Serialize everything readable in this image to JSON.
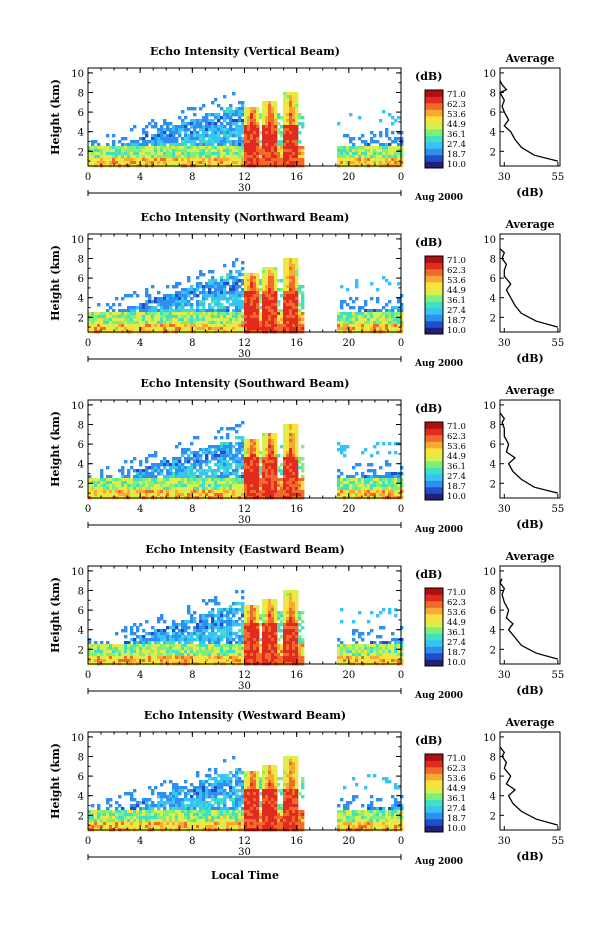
{
  "figure": {
    "x_label": "Local Time",
    "date_label": "Aug 2000",
    "day_label": "30",
    "cbar_unit": "(dB)",
    "cbar_ticks": [
      "71.0",
      "62.3",
      "53.6",
      "44.9",
      "36.1",
      "27.4",
      "18.7",
      "10.0"
    ],
    "cbar_colors": [
      "#20207a",
      "#1f4fc8",
      "#2f8ff0",
      "#35c4f5",
      "#40e0c0",
      "#7ef07a",
      "#d7f050",
      "#fbe23a",
      "#f8a934",
      "#f06a2c",
      "#e02b1e",
      "#b00f0f"
    ],
    "avg_title": "Average",
    "avg_xlabel": "(dB)"
  },
  "chart_data": [
    {
      "type": "heatmap",
      "title": "Echo Intensity (Vertical Beam)",
      "ylabel": "Height (km)",
      "xlabel": "Local Time",
      "x_ticks": [
        "0",
        "4",
        "8",
        "12",
        "16",
        "20",
        "0"
      ],
      "y_ticks": [
        "2",
        "4",
        "6",
        "8",
        "10"
      ],
      "xlim": [
        0,
        24
      ],
      "ylim": [
        0.5,
        10.5
      ],
      "colorbar": {
        "unit": "(dB)",
        "range": [
          10.0,
          71.0
        ]
      },
      "average_profile": {
        "x_ticks": [
          "30",
          "55"
        ],
        "xlim": [
          28,
          56
        ],
        "points": [
          [
            55,
            1.0
          ],
          [
            44,
            1.6
          ],
          [
            38,
            2.4
          ],
          [
            35,
            3.2
          ],
          [
            33,
            4.0
          ],
          [
            30,
            4.6
          ],
          [
            32,
            5.2
          ],
          [
            30,
            6.0
          ],
          [
            29,
            6.6
          ],
          [
            30,
            7.2
          ],
          [
            28,
            8.0
          ],
          [
            31,
            8.3
          ],
          [
            29,
            8.8
          ],
          [
            28,
            9.2
          ]
        ]
      }
    },
    {
      "type": "heatmap",
      "title": "Echo Intensity (Northward Beam)",
      "ylabel": "Height (km)",
      "xlabel": "Local Time",
      "x_ticks": [
        "0",
        "4",
        "8",
        "12",
        "16",
        "20",
        "0"
      ],
      "y_ticks": [
        "2",
        "4",
        "6",
        "8",
        "10"
      ],
      "xlim": [
        0,
        24
      ],
      "ylim": [
        0.5,
        10.5
      ],
      "colorbar": {
        "unit": "(dB)",
        "range": [
          10.0,
          71.0
        ]
      },
      "average_profile": {
        "x_ticks": [
          "30",
          "55"
        ],
        "xlim": [
          28,
          56
        ],
        "points": [
          [
            55,
            1.0
          ],
          [
            45,
            1.6
          ],
          [
            38,
            2.4
          ],
          [
            35,
            3.2
          ],
          [
            33,
            4.0
          ],
          [
            31,
            4.8
          ],
          [
            33,
            5.4
          ],
          [
            30,
            6.2
          ],
          [
            30,
            6.8
          ],
          [
            31,
            7.4
          ],
          [
            29,
            8.0
          ],
          [
            30,
            8.6
          ],
          [
            28,
            9.0
          ]
        ]
      }
    },
    {
      "type": "heatmap",
      "title": "Echo Intensity (Southward Beam)",
      "ylabel": "Height (km)",
      "xlabel": "Local Time",
      "x_ticks": [
        "0",
        "4",
        "8",
        "12",
        "16",
        "20",
        "0"
      ],
      "y_ticks": [
        "2",
        "4",
        "6",
        "8",
        "10"
      ],
      "xlim": [
        0,
        24
      ],
      "ylim": [
        0.5,
        10.5
      ],
      "colorbar": {
        "unit": "(dB)",
        "range": [
          10.0,
          71.0
        ]
      },
      "average_profile": {
        "x_ticks": [
          "30",
          "55"
        ],
        "xlim": [
          28,
          56
        ],
        "points": [
          [
            55,
            1.0
          ],
          [
            44,
            1.6
          ],
          [
            38,
            2.4
          ],
          [
            34,
            3.2
          ],
          [
            32,
            4.0
          ],
          [
            35,
            4.6
          ],
          [
            31,
            5.2
          ],
          [
            32,
            6.0
          ],
          [
            30,
            6.8
          ],
          [
            30,
            7.6
          ],
          [
            29,
            8.2
          ],
          [
            30,
            8.6
          ],
          [
            28,
            9.2
          ]
        ]
      }
    },
    {
      "type": "heatmap",
      "title": "Echo Intensity (Eastward Beam)",
      "ylabel": "Height (km)",
      "xlabel": "Local Time",
      "x_ticks": [
        "0",
        "4",
        "8",
        "12",
        "16",
        "20",
        "0"
      ],
      "y_ticks": [
        "2",
        "4",
        "6",
        "8",
        "10"
      ],
      "xlim": [
        0,
        24
      ],
      "ylim": [
        0.5,
        10.5
      ],
      "colorbar": {
        "unit": "(dB)",
        "range": [
          10.0,
          71.0
        ]
      },
      "average_profile": {
        "x_ticks": [
          "30",
          "55"
        ],
        "xlim": [
          28,
          56
        ],
        "points": [
          [
            55,
            1.0
          ],
          [
            45,
            1.6
          ],
          [
            38,
            2.4
          ],
          [
            35,
            3.2
          ],
          [
            32,
            4.0
          ],
          [
            34,
            4.6
          ],
          [
            31,
            5.2
          ],
          [
            32,
            6.0
          ],
          [
            30,
            6.8
          ],
          [
            29,
            7.6
          ],
          [
            30,
            8.2
          ],
          [
            28,
            8.8
          ],
          [
            29,
            9.2
          ]
        ]
      }
    },
    {
      "type": "heatmap",
      "title": "Echo Intensity (Westward Beam)",
      "ylabel": "Height (km)",
      "xlabel": "Local Time",
      "x_ticks": [
        "0",
        "4",
        "8",
        "12",
        "16",
        "20",
        "0"
      ],
      "y_ticks": [
        "2",
        "4",
        "6",
        "8",
        "10"
      ],
      "xlim": [
        0,
        24
      ],
      "ylim": [
        0.5,
        10.5
      ],
      "colorbar": {
        "unit": "(dB)",
        "range": [
          10.0,
          71.0
        ]
      },
      "average_profile": {
        "x_ticks": [
          "30",
          "55"
        ],
        "xlim": [
          28,
          56
        ],
        "points": [
          [
            55,
            1.0
          ],
          [
            45,
            1.6
          ],
          [
            38,
            2.4
          ],
          [
            34,
            3.2
          ],
          [
            32,
            4.0
          ],
          [
            35,
            4.6
          ],
          [
            31,
            5.2
          ],
          [
            33,
            6.0
          ],
          [
            30,
            6.8
          ],
          [
            31,
            7.4
          ],
          [
            29,
            8.0
          ],
          [
            30,
            8.4
          ],
          [
            28,
            9.0
          ]
        ]
      }
    }
  ]
}
